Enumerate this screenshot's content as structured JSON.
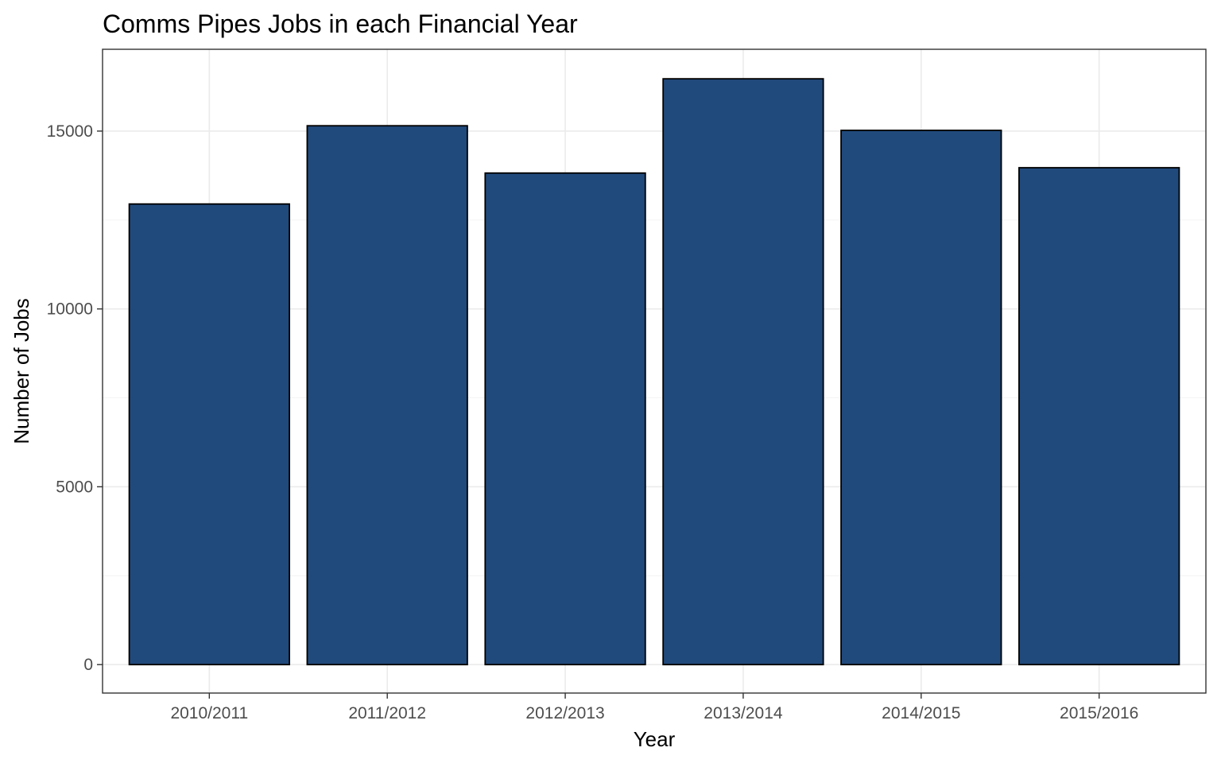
{
  "chart_data": {
    "type": "bar",
    "title": "Comms Pipes Jobs in each Financial Year",
    "xlabel": "Year",
    "ylabel": "Number of Jobs",
    "categories": [
      "2010/2011",
      "2011/2012",
      "2012/2013",
      "2013/2014",
      "2014/2015",
      "2015/2016"
    ],
    "values": [
      12950,
      15150,
      13820,
      16470,
      15020,
      13970
    ],
    "ylim": [
      -800,
      17300
    ],
    "yticks": [
      0,
      5000,
      10000,
      15000
    ],
    "ytick_labels": [
      "0",
      "5000",
      "10000",
      "15000"
    ],
    "grid": true,
    "bar_color": "#214a7c",
    "bar_outline_color": "#000000"
  }
}
